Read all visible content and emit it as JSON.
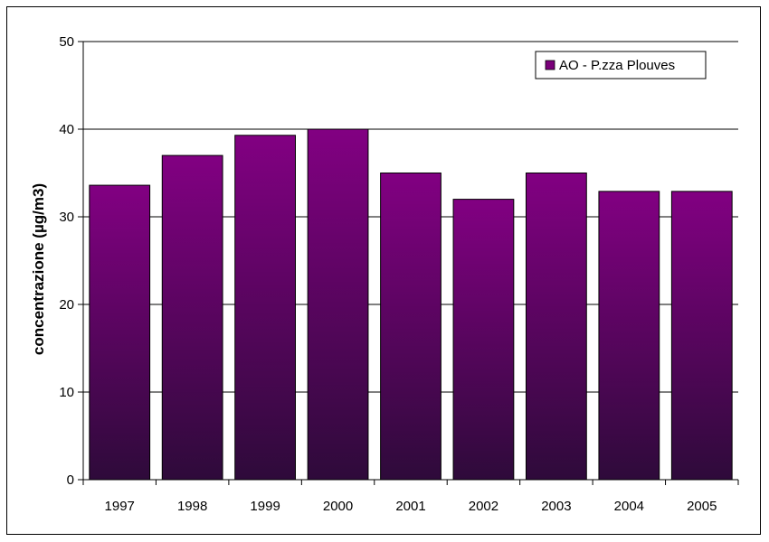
{
  "chart_data": {
    "type": "bar",
    "categories": [
      "1997",
      "1998",
      "1999",
      "2000",
      "2001",
      "2002",
      "2003",
      "2004",
      "2005"
    ],
    "series": [
      {
        "name": "AO - P.zza Plouves",
        "values": [
          33.6,
          37.0,
          39.3,
          40.0,
          35.0,
          32.0,
          35.0,
          32.9,
          32.9
        ]
      }
    ],
    "title": "",
    "xlabel": "",
    "ylabel": "concentrazione (µg/m3)",
    "ylim": [
      0,
      50
    ],
    "yticks": [
      0,
      10,
      20,
      30,
      40,
      50
    ],
    "grid": true,
    "legend_position": "top-right",
    "colors": {
      "bar_top": "#820082",
      "bar_bottom": "#2e0a3a",
      "axis": "#000000"
    }
  }
}
